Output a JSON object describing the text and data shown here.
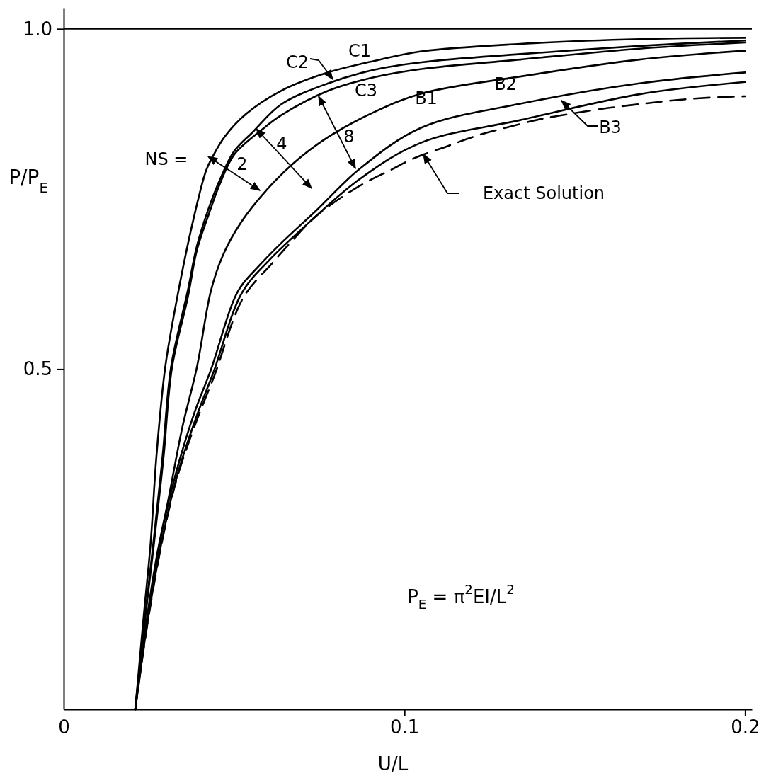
{
  "chart_data": {
    "type": "line",
    "xlabel": "U/L",
    "ylabel": "P/P$_{E}$",
    "xlim": [
      0,
      0.202
    ],
    "ylim": [
      0,
      1.03
    ],
    "xticks": [
      {
        "value": 0,
        "label": "0"
      },
      0.1,
      0.2
    ],
    "yticks": [
      {
        "value": 0.5,
        "label": "0.5"
      },
      {
        "value": 1,
        "label": "1.0"
      }
    ],
    "line_style": "solid",
    "ref_lines": [
      {
        "axis": "y",
        "value": 1,
        "label": null
      }
    ],
    "series": [
      {
        "color": "#000000",
        "x": [
          0.021,
          0.0235,
          0.0255,
          0.0272,
          0.0298,
          0.0333,
          0.0377,
          0.0418,
          0.0438,
          0.0473,
          0.0535,
          0.0638,
          0.0776,
          0.0912,
          0.105,
          0.134,
          0.169,
          0.2
        ],
        "values": [
          0,
          0.138,
          0.244,
          0.371,
          0.503,
          0.605,
          0.712,
          0.792,
          0.813,
          0.842,
          0.875,
          0.909,
          0.936,
          0.953,
          0.967,
          0.978,
          0.985,
          0.987
        ]
      },
      {
        "color": "#000000",
        "x": [
          0.021,
          0.0239,
          0.0263,
          0.029,
          0.0315,
          0.0364,
          0.0391,
          0.0426,
          0.0459,
          0.05,
          0.0556,
          0.0638,
          0.0776,
          0.0912,
          0.105,
          0.134,
          0.169,
          0.2
        ],
        "values": [
          0,
          0.138,
          0.244,
          0.371,
          0.503,
          0.615,
          0.681,
          0.737,
          0.779,
          0.82,
          0.849,
          0.889,
          0.92,
          0.94,
          0.951,
          0.963,
          0.975,
          0.983
        ]
      },
      {
        "color": "#000000",
        "x": [
          0.021,
          0.024,
          0.0265,
          0.0293,
          0.0318,
          0.0364,
          0.0391,
          0.0426,
          0.0459,
          0.05,
          0.0582,
          0.0638,
          0.0776,
          0.0912,
          0.105,
          0.134,
          0.169,
          0.2
        ],
        "values": [
          0,
          0.138,
          0.244,
          0.371,
          0.503,
          0.605,
          0.675,
          0.728,
          0.773,
          0.815,
          0.852,
          0.873,
          0.909,
          0.929,
          0.941,
          0.955,
          0.971,
          0.98
        ]
      },
      {
        "color": "#000000",
        "x": [
          0.021,
          0.0239,
          0.0272,
          0.0307,
          0.0348,
          0.0391,
          0.0432,
          0.0467,
          0.0521,
          0.0597,
          0.0673,
          0.0776,
          0.0912,
          0.105,
          0.134,
          0.169,
          0.2
        ],
        "values": [
          0,
          0.116,
          0.222,
          0.308,
          0.414,
          0.503,
          0.615,
          0.667,
          0.716,
          0.764,
          0.802,
          0.841,
          0.878,
          0.905,
          0.93,
          0.955,
          0.968
        ]
      },
      {
        "color": "#000000",
        "x": [
          0.021,
          0.0247,
          0.029,
          0.0331,
          0.0383,
          0.0432,
          0.0512,
          0.057,
          0.0638,
          0.0741,
          0.0868,
          0.105,
          0.134,
          0.169,
          0.2
        ],
        "values": [
          0,
          0.138,
          0.265,
          0.35,
          0.435,
          0.499,
          0.615,
          0.65,
          0.685,
          0.733,
          0.794,
          0.855,
          0.89,
          0.92,
          0.936
        ]
      },
      {
        "color": "#000000",
        "x": [
          0.021,
          0.0249,
          0.0294,
          0.0335,
          0.0391,
          0.044,
          0.0523,
          0.0603,
          0.0706,
          0.0868,
          0.105,
          0.134,
          0.169,
          0.2
        ],
        "values": [
          0,
          0.138,
          0.262,
          0.347,
          0.432,
          0.496,
          0.612,
          0.66,
          0.709,
          0.779,
          0.833,
          0.866,
          0.904,
          0.922
        ]
      },
      {
        "color": "#000000",
        "line_style": "dashed",
        "x": [
          0.021,
          0.0249,
          0.0294,
          0.0335,
          0.0393,
          0.0442,
          0.0527,
          0.0611,
          0.0673,
          0.0741,
          0.0864,
          0.0961,
          0.1029,
          0.1128,
          0.1218,
          0.1315,
          0.1405,
          0.151,
          0.1601,
          0.17,
          0.179,
          0.1895,
          0.2
        ],
        "values": [
          0,
          0.136,
          0.26,
          0.344,
          0.428,
          0.49,
          0.605,
          0.655,
          0.69,
          0.725,
          0.768,
          0.793,
          0.81,
          0.828,
          0.844,
          0.857,
          0.868,
          0.877,
          0.884,
          0.89,
          0.895,
          0.899,
          0.901
        ]
      }
    ],
    "annotations": [
      "C1",
      "C2",
      "C3",
      "B1",
      "B2",
      "B3",
      "Exact Solution",
      "NS =",
      "2",
      "4",
      "8",
      "P$_{E}$ = π$^{2}$EI/L$^{2}$"
    ]
  }
}
